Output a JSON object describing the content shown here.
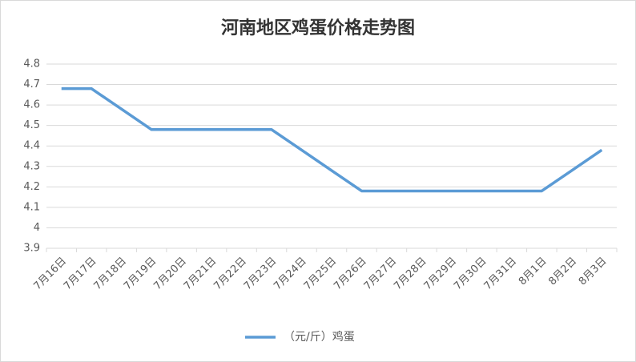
{
  "chart_data": {
    "type": "line",
    "title": "河南地区鸡蛋价格走势图",
    "categories": [
      "7月16日",
      "7月17日",
      "7月18日",
      "7月19日",
      "7月20日",
      "7月21日",
      "7月22日",
      "7月23日",
      "7月24日",
      "7月25日",
      "7月26日",
      "7月27日",
      "7月28日",
      "7月29日",
      "7月30日",
      "7月31日",
      "8月1日",
      "8月2日",
      "8月3日"
    ],
    "series": [
      {
        "name": "（元/斤）鸡蛋",
        "color": "#5b9bd5",
        "values": [
          4.68,
          4.68,
          4.58,
          4.48,
          4.48,
          4.48,
          4.48,
          4.48,
          4.38,
          4.28,
          4.18,
          4.18,
          4.18,
          4.18,
          4.18,
          4.18,
          4.18,
          4.28,
          4.38
        ]
      }
    ],
    "ylim": [
      3.9,
      4.8
    ],
    "yticks": [
      3.9,
      4,
      4.1,
      4.2,
      4.3,
      4.4,
      4.5,
      4.6,
      4.7,
      4.8
    ],
    "grid": true,
    "legend": "bottom"
  }
}
